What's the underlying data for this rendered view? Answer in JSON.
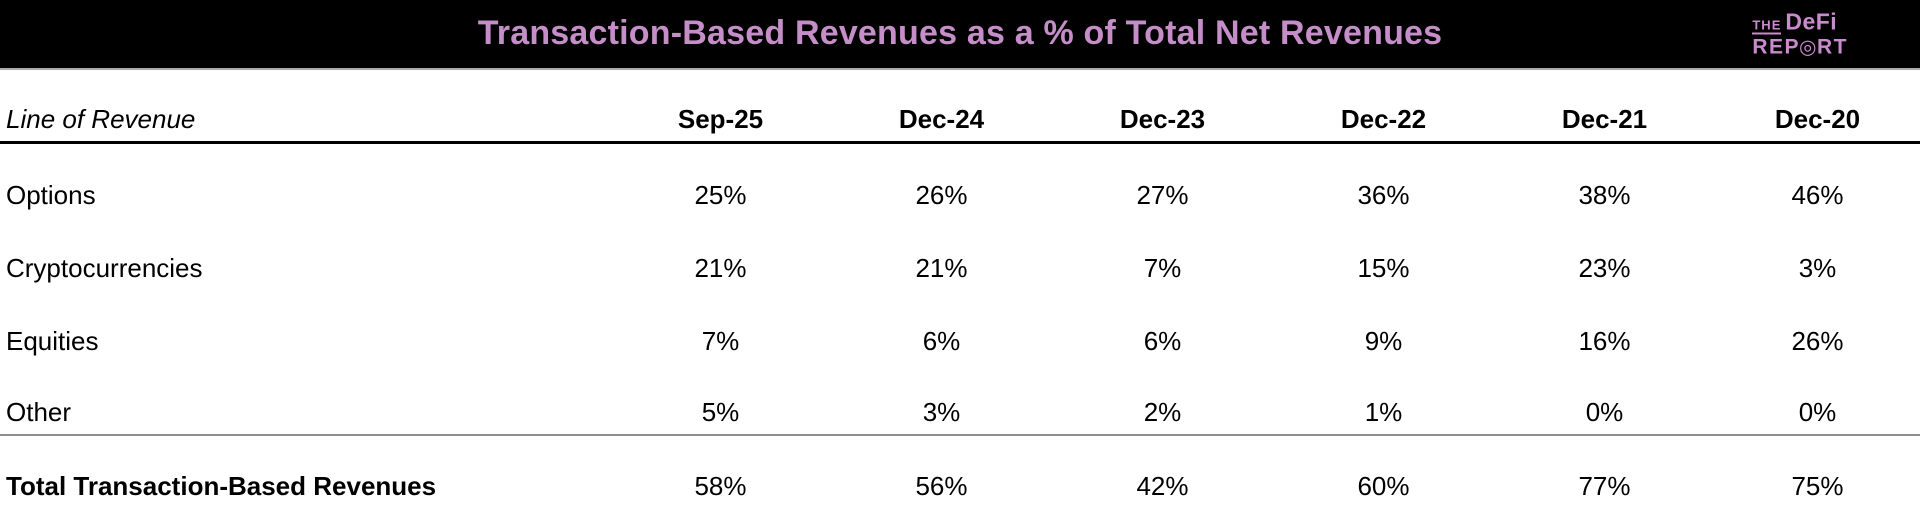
{
  "header": {
    "title": "Transaction-Based Revenues as a % of Total Net Revenues",
    "logo": {
      "the": "THE",
      "defi": "DeFi",
      "rep": "REP",
      "bullseye": "◎",
      "rt": "RT"
    },
    "colors": {
      "bar_background": "#000000",
      "title_text": "#C58EC9",
      "logo_text": "#CA8BCE"
    }
  },
  "table": {
    "row_header_label": "Line of Revenue",
    "columns": [
      "Sep-25",
      "Dec-24",
      "Dec-23",
      "Dec-22",
      "Dec-21",
      "Dec-20"
    ],
    "rows": [
      {
        "label": "Options",
        "values": [
          "25%",
          "26%",
          "27%",
          "36%",
          "38%",
          "46%"
        ]
      },
      {
        "label": "Cryptocurrencies",
        "values": [
          "21%",
          "21%",
          "7%",
          "15%",
          "23%",
          "3%"
        ]
      },
      {
        "label": "Equities",
        "values": [
          "7%",
          "6%",
          "6%",
          "9%",
          "16%",
          "26%"
        ]
      },
      {
        "label": "Other",
        "values": [
          "5%",
          "3%",
          "2%",
          "1%",
          "0%",
          "0%"
        ]
      }
    ],
    "total": {
      "label": "Total Transaction-Based Revenues",
      "values": [
        "58%",
        "56%",
        "42%",
        "60%",
        "77%",
        "75%"
      ]
    }
  },
  "chart_data": {
    "type": "table",
    "title": "Transaction-Based Revenues as a % of Total Net Revenues",
    "row_header": "Line of Revenue",
    "columns": [
      "Sep-25",
      "Dec-24",
      "Dec-23",
      "Dec-22",
      "Dec-21",
      "Dec-20"
    ],
    "series": [
      {
        "name": "Options",
        "values": [
          25,
          26,
          27,
          36,
          38,
          46
        ]
      },
      {
        "name": "Cryptocurrencies",
        "values": [
          21,
          21,
          7,
          15,
          23,
          3
        ]
      },
      {
        "name": "Equities",
        "values": [
          7,
          6,
          6,
          9,
          16,
          26
        ]
      },
      {
        "name": "Other",
        "values": [
          5,
          3,
          2,
          1,
          0,
          0
        ]
      },
      {
        "name": "Total Transaction-Based Revenues",
        "values": [
          58,
          56,
          42,
          60,
          77,
          75
        ]
      }
    ],
    "unit": "%"
  }
}
